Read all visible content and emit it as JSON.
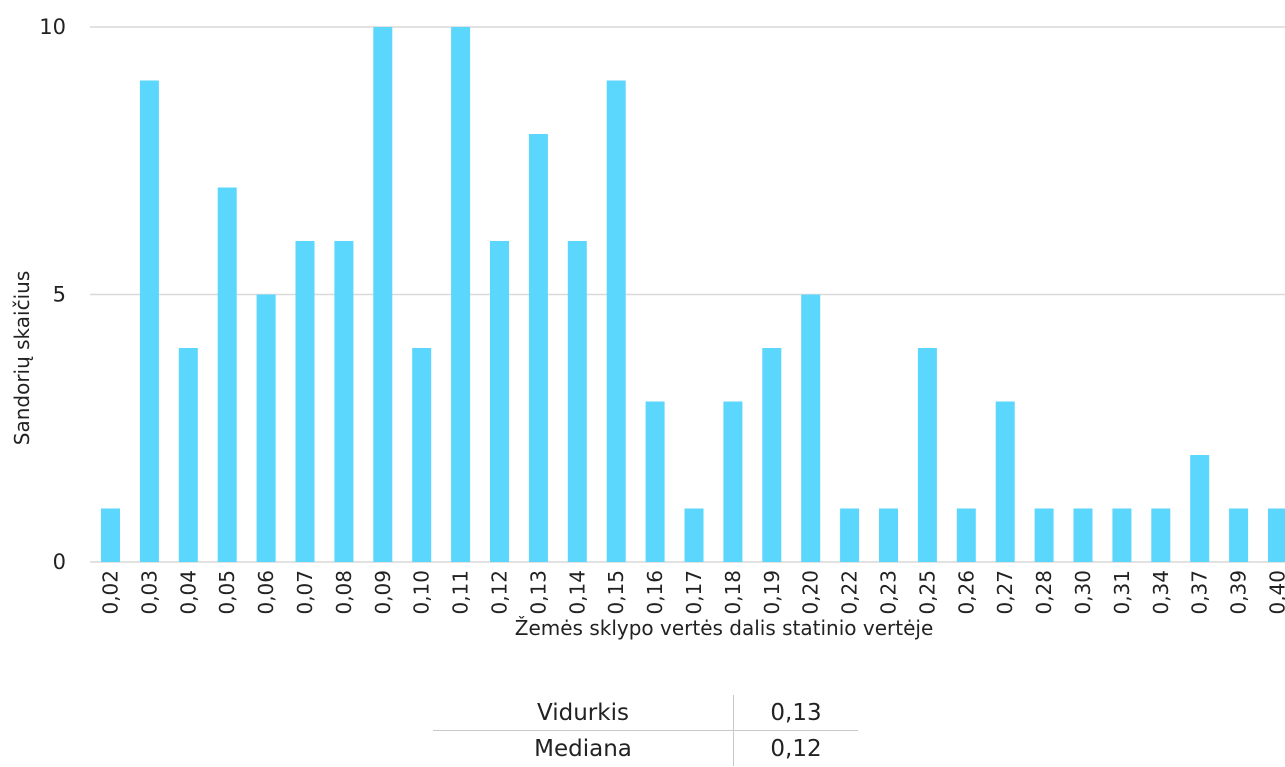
{
  "chart_data": {
    "type": "bar",
    "ylabel": "Sandorių skaičius",
    "xlabel": "Žemės sklypo vertės dalis statinio vertėje",
    "categories": [
      "0,02",
      "0,03",
      "0,04",
      "0,05",
      "0,06",
      "0,07",
      "0,08",
      "0,09",
      "0,10",
      "0,11",
      "0,12",
      "0,13",
      "0,14",
      "0,15",
      "0,16",
      "0,17",
      "0,18",
      "0,19",
      "0,20",
      "0,22",
      "0,23",
      "0,25",
      "0,26",
      "0,27",
      "0,28",
      "0,30",
      "0,31",
      "0,34",
      "0,37",
      "0,39",
      "0,40"
    ],
    "values": [
      1,
      9,
      4,
      7,
      5,
      6,
      6,
      10,
      4,
      10,
      6,
      8,
      6,
      9,
      3,
      1,
      3,
      4,
      5,
      1,
      1,
      4,
      1,
      3,
      1,
      1,
      1,
      1,
      2,
      1,
      1
    ],
    "ylim": [
      0,
      10
    ],
    "yticks": [
      "0",
      "5",
      "10"
    ],
    "grid": true,
    "bar_color": "#5bd6fd",
    "grid_color": "#d9d9d9"
  },
  "stats": [
    {
      "label": "Vidurkis",
      "value": "0,13"
    },
    {
      "label": "Mediana",
      "value": "0,12"
    }
  ]
}
